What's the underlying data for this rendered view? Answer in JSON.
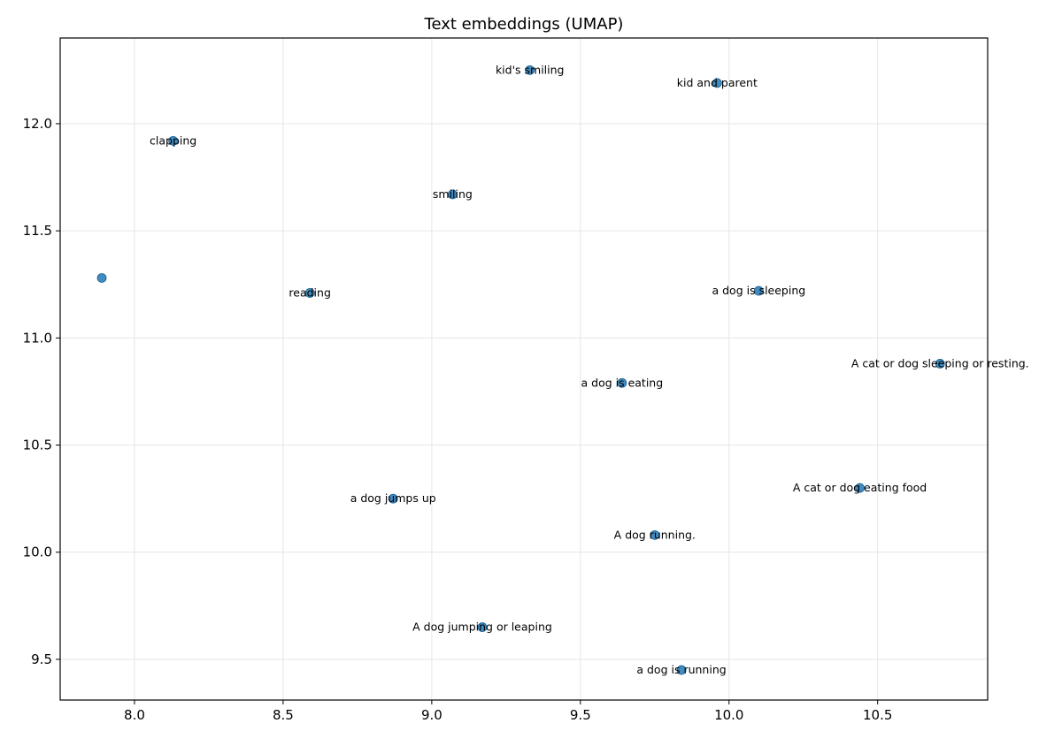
{
  "chart_data": {
    "type": "scatter",
    "title": "Text embeddings (UMAP)",
    "xlabel": "",
    "ylabel": "",
    "xlim": [
      7.75,
      10.87
    ],
    "ylim": [
      9.31,
      12.4
    ],
    "x_ticks": [
      "8.0",
      "8.5",
      "9.0",
      "9.5",
      "10.0",
      "10.5"
    ],
    "y_ticks": [
      "9.5",
      "10.0",
      "10.5",
      "11.0",
      "11.5",
      "12.0"
    ],
    "grid": true,
    "point_color": "#1f77b4",
    "points": [
      {
        "x": 9.33,
        "y": 12.25,
        "label": "kid's smiling"
      },
      {
        "x": 9.96,
        "y": 12.19,
        "label": "kid and parent"
      },
      {
        "x": 8.13,
        "y": 11.92,
        "label": "clapping"
      },
      {
        "x": 9.07,
        "y": 11.67,
        "label": "smiling"
      },
      {
        "x": 7.89,
        "y": 11.28,
        "label": ""
      },
      {
        "x": 8.59,
        "y": 11.21,
        "label": "reading"
      },
      {
        "x": 10.1,
        "y": 11.22,
        "label": "a dog is sleeping"
      },
      {
        "x": 10.71,
        "y": 10.88,
        "label": "A cat or dog sleeping or resting."
      },
      {
        "x": 9.64,
        "y": 10.79,
        "label": "a dog is eating"
      },
      {
        "x": 10.44,
        "y": 10.3,
        "label": "A cat or dog eating food"
      },
      {
        "x": 8.87,
        "y": 10.25,
        "label": "a dog jumps up"
      },
      {
        "x": 9.75,
        "y": 10.08,
        "label": "A dog running."
      },
      {
        "x": 9.17,
        "y": 9.65,
        "label": "A dog jumping or leaping"
      },
      {
        "x": 9.84,
        "y": 9.45,
        "label": "a dog is running"
      }
    ]
  }
}
